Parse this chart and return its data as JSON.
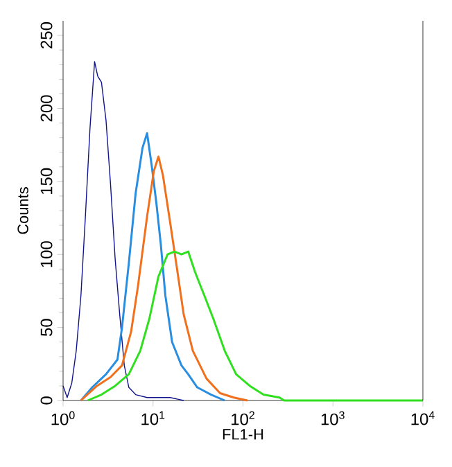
{
  "chart_data": {
    "type": "line",
    "xlabel": "FL1-H",
    "ylabel": "Counts",
    "log": "x",
    "grid": false,
    "marker": "none",
    "line_style": "solid",
    "xlim": [
      1,
      10000
    ],
    "ylim": [
      0,
      260
    ],
    "xticks": [
      {
        "value": 1,
        "label": "10$^{0}$"
      },
      {
        "value": 10,
        "label": "10$^{1}$"
      },
      {
        "value": 100,
        "label": "10$^{2}$"
      },
      {
        "value": 1000,
        "label": "10$^{3}$"
      },
      {
        "value": 10000,
        "label": "10$^{4}$"
      }
    ],
    "yticks": [
      0,
      50,
      100,
      150,
      200,
      250
    ],
    "series": [
      {
        "color": "#10148c",
        "x": [
          1.0,
          1.11,
          1.25,
          1.4,
          1.58,
          1.77,
          1.99,
          2.24,
          2.43,
          2.67,
          3.0,
          3.37,
          3.79,
          4.26,
          4.79,
          5.38,
          6.41,
          8.59,
          15.5,
          21.9
        ],
        "values": [
          10,
          2,
          12,
          34,
          72,
          126,
          186,
          232,
          222,
          218,
          192,
          148,
          97,
          59,
          24,
          9,
          4,
          2,
          2,
          0
        ]
      },
      {
        "color": "#2a8ee0",
        "x": [
          1.58,
          2.11,
          3.0,
          4.02,
          4.52,
          5.38,
          6.41,
          7.64,
          8.59,
          9.66,
          10.9,
          12.2,
          13.7,
          16.3,
          20.7,
          24.6,
          31.0,
          44.2,
          62.7
        ],
        "values": [
          0,
          9,
          18,
          28,
          50,
          94,
          142,
          173,
          183,
          161,
          135,
          107,
          72,
          40,
          24,
          18,
          9,
          4,
          0
        ]
      },
      {
        "color": "#f0701e",
        "x": [
          1.58,
          2.38,
          3.37,
          4.52,
          5.7,
          6.79,
          8.59,
          10.2,
          11.5,
          12.9,
          15.4,
          18.4,
          21.9,
          27.7,
          39.3,
          55.7,
          79.1,
          112
        ],
        "values": [
          0,
          10,
          16,
          24,
          47,
          78,
          126,
          157,
          167,
          154,
          123,
          91,
          59,
          34,
          15,
          5,
          2,
          0
        ]
      },
      {
        "color": "#30e020",
        "x": [
          1.88,
          2.67,
          3.79,
          5.38,
          7.21,
          9.1,
          11.5,
          14.5,
          17.3,
          20.7,
          24.6,
          29.3,
          37.1,
          46.8,
          62.7,
          83.9,
          119,
          169,
          255,
          286,
          1000,
          10000
        ],
        "values": [
          0,
          4,
          10,
          18,
          34,
          56,
          85,
          100,
          102,
          100,
          102,
          88,
          72,
          56,
          34,
          18,
          10,
          4,
          2,
          0,
          0,
          0
        ]
      }
    ]
  }
}
